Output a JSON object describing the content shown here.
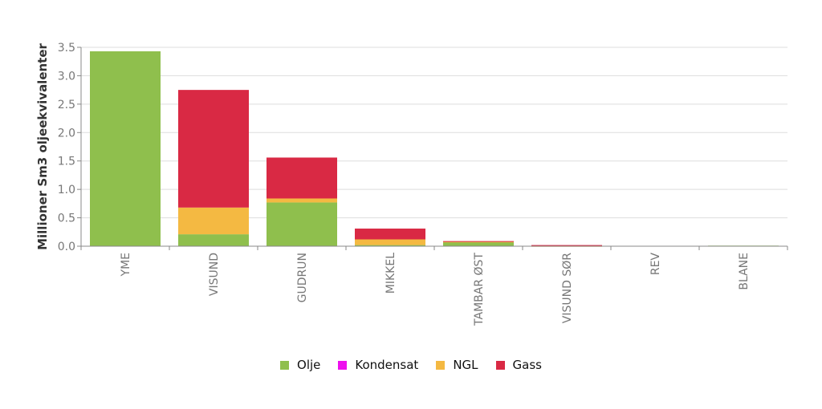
{
  "chart_data": {
    "type": "bar",
    "stacked": true,
    "ylabel": "Millioner Sm3 oljeekvivalenter",
    "ylim": [
      0,
      3.5
    ],
    "yticks": [
      "0.0",
      "0.5",
      "1.0",
      "1.5",
      "2.0",
      "2.5",
      "3.0",
      "3.5"
    ],
    "ytick_values": [
      0,
      0.5,
      1.0,
      1.5,
      2.0,
      2.5,
      3.0,
      3.5
    ],
    "grid": true,
    "legend_position": "bottom-center",
    "categories": [
      "YME",
      "VISUND",
      "GUDRUN",
      "MIKKEL",
      "TAMBAR ØST",
      "VISUND SØR",
      "REV",
      "BLANE"
    ],
    "series": [
      {
        "name": "Olje",
        "color": "#8fbf4d",
        "values": [
          3.43,
          0.21,
          0.77,
          0.02,
          0.07,
          0.0,
          0.0,
          0.01
        ]
      },
      {
        "name": "Kondensat",
        "color": "#ee10ee",
        "values": [
          0,
          0,
          0,
          0,
          0,
          0,
          0,
          0
        ]
      },
      {
        "name": "NGL",
        "color": "#f4b942",
        "values": [
          0,
          0.47,
          0.07,
          0.1,
          0.01,
          0.005,
          0,
          0
        ]
      },
      {
        "name": "Gass",
        "color": "#d92944",
        "values": [
          0,
          2.07,
          0.72,
          0.19,
          0.01,
          0.015,
          0,
          0
        ]
      }
    ]
  }
}
